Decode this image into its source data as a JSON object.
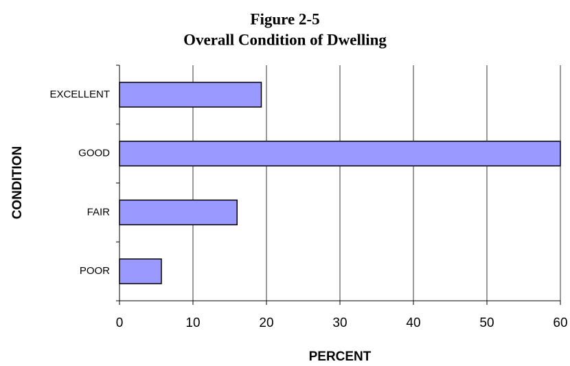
{
  "chart_data": {
    "type": "hbar",
    "title": "Figure 2-5",
    "subtitle": "Overall Condition of Dwelling",
    "categories": [
      "EXCELLENT",
      "GOOD",
      "FAIR",
      "POOR"
    ],
    "values": [
      19.3,
      60,
      16,
      5.7
    ],
    "color": "#9999ff",
    "xlim": [
      0,
      60
    ],
    "xticks": [
      0,
      10,
      20,
      30,
      40,
      50,
      60
    ],
    "grid": true,
    "xlabel": "PERCENT",
    "ylabel": "CONDITION"
  }
}
